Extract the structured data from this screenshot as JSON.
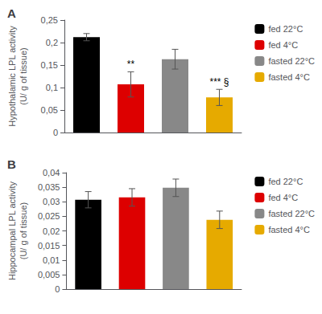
{
  "chart_data": [
    {
      "type": "bar",
      "title": "A",
      "categories": [
        "fed 22°C",
        "fed 4°C",
        "fasted 22°C",
        "fasted 4°C"
      ],
      "values": [
        0.212,
        0.107,
        0.163,
        0.078
      ],
      "errors": [
        0.008,
        0.028,
        0.022,
        0.018
      ],
      "colors": [
        "#000000",
        "#dd0000",
        "#888888",
        "#e6aa00"
      ],
      "ylabel": "Hypothalamic LPL activity\n(U/ g of tissue)",
      "ylim": [
        0,
        0.25
      ],
      "yticks": [
        0,
        {
          "value": 0.05,
          "label": "0,05"
        },
        {
          "value": 0.1,
          "label": "0,1"
        },
        {
          "value": 0.15,
          "label": "0,15"
        },
        {
          "value": 0.2,
          "label": "0,2"
        },
        {
          "value": 0.25,
          "label": "0,25"
        }
      ],
      "annotations": [
        {
          "category": "fed 4°C",
          "text": "**"
        },
        {
          "category": "fasted 4°C",
          "text": "*** §"
        }
      ],
      "legend": "upper right",
      "grid": false,
      "tick_labels": "y"
    },
    {
      "type": "bar",
      "title": "B",
      "categories": [
        "fed 22°C",
        "fed 4°C",
        "fasted 22°C",
        "fasted 4°C"
      ],
      "values": [
        0.0307,
        0.0315,
        0.0348,
        0.0238
      ],
      "errors": [
        0.0028,
        0.003,
        0.003,
        0.003
      ],
      "colors": [
        "#000000",
        "#dd0000",
        "#888888",
        "#e6aa00"
      ],
      "ylabel": "Hippocampal LPL activity\n(U/ g of tissue)",
      "ylim": [
        0,
        0.04
      ],
      "yticks": [
        0,
        {
          "value": 0.005,
          "label": "0,005"
        },
        {
          "value": 0.01,
          "label": "0,01"
        },
        {
          "value": 0.015,
          "label": "0,015"
        },
        {
          "value": 0.02,
          "label": "0,02"
        },
        {
          "value": 0.025,
          "label": "0,025"
        },
        {
          "value": 0.03,
          "label": "0,03"
        },
        {
          "value": 0.035,
          "label": "0,035"
        },
        {
          "value": 0.04,
          "label": "0,04"
        }
      ],
      "legend": "upper right",
      "grid": false,
      "tick_labels": "y"
    }
  ]
}
